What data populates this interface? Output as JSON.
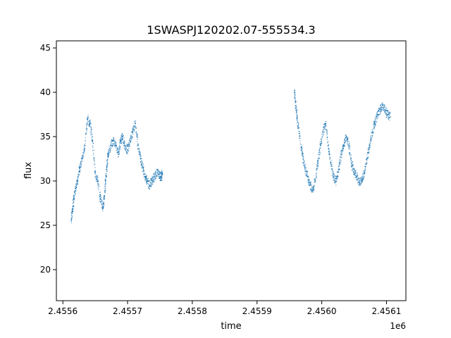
{
  "chart_data": {
    "type": "scatter",
    "title": "1SWASPJ120202.07-555534.3",
    "xlabel": "time",
    "ylabel": "flux",
    "x_offset_label": "1e6",
    "xlim": [
      2.45559,
      2.45613
    ],
    "ylim": [
      16.5,
      45.8
    ],
    "x_ticks": [
      2.4556,
      2.4557,
      2.4558,
      2.4559,
      2.456,
      2.4561
    ],
    "x_tick_labels": [
      "2.4556",
      "2.4557",
      "2.4558",
      "2.4559",
      "2.4560",
      "2.4561"
    ],
    "y_ticks": [
      20,
      25,
      30,
      35,
      40,
      45
    ],
    "y_tick_labels": [
      "20",
      "25",
      "30",
      "35",
      "40",
      "45"
    ],
    "grid": false,
    "marker_color": "#1f77b4",
    "series": [
      {
        "x": [
          2.455613,
          2.455615,
          2.455617,
          2.45562,
          2.455623,
          2.455626,
          2.45563,
          2.455634,
          2.455638,
          2.455642,
          2.455646,
          2.45565,
          2.455654,
          2.455658,
          2.455662,
          2.455664,
          2.455666,
          2.455668,
          2.45567,
          2.455674,
          2.455678,
          2.455682,
          2.455686,
          2.455689,
          2.455692,
          2.455696,
          2.4557,
          2.455704,
          2.455708,
          2.455712,
          2.455716,
          2.45572,
          2.455724,
          2.455727,
          2.45573,
          2.455734,
          2.455738,
          2.455742,
          2.455746,
          2.45575,
          2.455752,
          2.455754,
          2.455958,
          2.45596,
          2.455962,
          2.455966,
          2.45597,
          2.455974,
          2.455978,
          2.455982,
          2.455986,
          2.45599,
          2.455994,
          2.455998,
          2.456002,
          2.456006,
          2.45601,
          2.456014,
          2.456018,
          2.456022,
          2.456026,
          2.45603,
          2.456034,
          2.456038,
          2.456042,
          2.456046,
          2.45605,
          2.456054,
          2.456058,
          2.456062,
          2.456066,
          2.45607,
          2.456074,
          2.456078,
          2.456082,
          2.456086,
          2.45609,
          2.456094,
          2.456098,
          2.456102,
          2.456106
        ],
        "y": [
          25.5,
          26.8,
          28.0,
          29.2,
          30.0,
          31.5,
          32.5,
          34.0,
          37.0,
          36.5,
          34.5,
          31.0,
          30.0,
          28.0,
          27.0,
          28.0,
          30.0,
          31.5,
          33.0,
          34.0,
          34.5,
          34.0,
          33.0,
          34.5,
          35.0,
          34.0,
          33.5,
          34.5,
          35.5,
          36.5,
          34.0,
          32.5,
          31.5,
          30.5,
          30.0,
          29.5,
          30.0,
          30.5,
          31.0,
          30.5,
          30.5,
          30.8,
          40.0,
          38.5,
          37.0,
          35.0,
          33.0,
          31.5,
          30.5,
          29.5,
          29.0,
          30.0,
          32.0,
          34.0,
          35.5,
          36.5,
          34.0,
          32.0,
          30.5,
          30.0,
          31.0,
          33.0,
          34.0,
          35.0,
          34.0,
          32.0,
          31.0,
          30.5,
          29.8,
          30.0,
          31.0,
          32.5,
          34.0,
          35.5,
          36.5,
          37.5,
          38.0,
          38.5,
          38.0,
          37.5,
          37.2
        ]
      }
    ]
  }
}
